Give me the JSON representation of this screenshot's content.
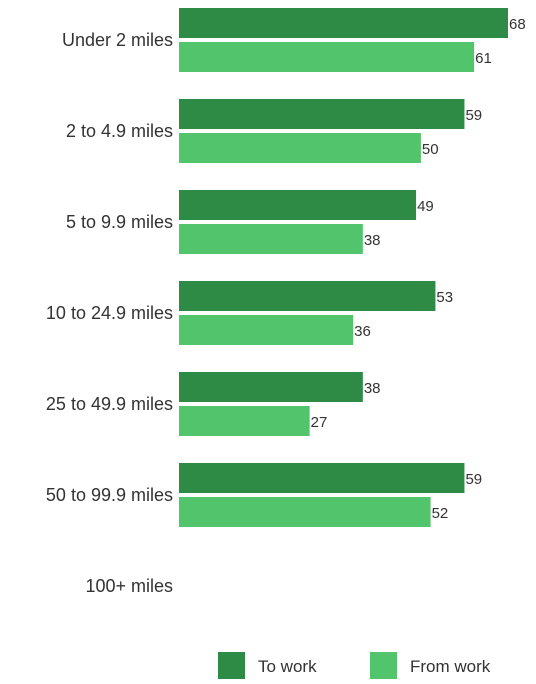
{
  "chart_data": {
    "type": "bar",
    "orientation": "horizontal",
    "title": "",
    "xlabel": "",
    "ylabel": "",
    "categories": [
      "Under 2 miles",
      "2 to 4.9 miles",
      "5 to 9.9 miles",
      "10 to 24.9 miles",
      "25 to 49.9 miles",
      "50 to 99.9 miles",
      "100+ miles"
    ],
    "series": [
      {
        "name": "To work",
        "color": "#2e8b45",
        "values": [
          68,
          59,
          49,
          53,
          38,
          59,
          null
        ]
      },
      {
        "name": "From work",
        "color": "#52c56c",
        "values": [
          61,
          50,
          38,
          36,
          27,
          52,
          null
        ]
      }
    ],
    "xlim": [
      0,
      68
    ],
    "grid": false,
    "legend_position": "bottom-right",
    "data_labels": true
  }
}
